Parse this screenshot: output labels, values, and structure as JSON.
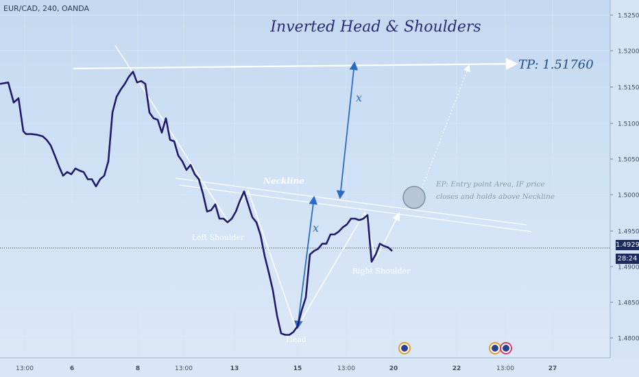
{
  "symbol_info": "EUR/CAD, 240, OANDA",
  "colors": {
    "price_line": "#1f1a6b",
    "annotation": "#ffffff",
    "accent_blue": "#2a6bc8",
    "title": "#2a2a7a",
    "tag_bg": "#1a2a5c"
  },
  "price_tag": {
    "price": "1.49290",
    "countdown": "28:24"
  },
  "chart_data": {
    "type": "line",
    "title": "Inverted Head & Shoulders",
    "x_ticks": [
      "13:00",
      "6",
      "8",
      "13:00",
      "13",
      "15",
      "13:00",
      "20",
      "22",
      "13:00",
      "27"
    ],
    "y_ticks": [
      "1.52500",
      "1.52000",
      "1.51500",
      "1.51000",
      "1.50500",
      "1.50000",
      "1.49500",
      "1.49000",
      "1.48500",
      "1.48000"
    ],
    "ylim": [
      1.4775,
      1.5275
    ],
    "grid": true,
    "series": [
      {
        "x": [
          0,
          12,
          20,
          27,
          34,
          38,
          46,
          54,
          62,
          68,
          74,
          80,
          86,
          92,
          98,
          104,
          110,
          116,
          122,
          128,
          134,
          140,
          146,
          152,
          158,
          164,
          170,
          176,
          182,
          188,
          194,
          200,
          206,
          212,
          218,
          224,
          230,
          236,
          242,
          248,
          254,
          260,
          266,
          272,
          278,
          284,
          290,
          296,
          302,
          308,
          314,
          320,
          326,
          332,
          338,
          344,
          350,
          356,
          362,
          368,
          374,
          380,
          386,
          392,
          398,
          404,
          410,
          416,
          422,
          428,
          434,
          440,
          446,
          452,
          458,
          464,
          470,
          476,
          482,
          488,
          494,
          500,
          506,
          512,
          518,
          524,
          530,
          536,
          542,
          548,
          554,
          560,
          566,
          572
        ],
        "y": [
          1.5158,
          1.516,
          1.5132,
          1.5138,
          1.5092,
          1.5088,
          1.5088,
          1.5087,
          1.5085,
          1.508,
          1.5072,
          1.5058,
          1.5043,
          1.503,
          1.5035,
          1.5032,
          1.504,
          1.5037,
          1.5035,
          1.5025,
          1.5025,
          1.5015,
          1.5025,
          1.503,
          1.505,
          1.5118,
          1.514,
          1.515,
          1.5158,
          1.5168,
          1.5175,
          1.516,
          1.5162,
          1.5158,
          1.5118,
          1.511,
          1.5108,
          1.509,
          1.511,
          1.508,
          1.5078,
          1.5058,
          1.505,
          1.5038,
          1.5045,
          1.5032,
          1.5025,
          1.5005,
          1.498,
          1.4982,
          1.499,
          1.497,
          1.497,
          1.4965,
          1.497,
          1.498,
          1.4995,
          1.5008,
          1.499,
          1.4972,
          1.4965,
          1.4947,
          1.4918,
          1.4895,
          1.487,
          1.4835,
          1.481,
          1.4808,
          1.4808,
          1.4812,
          1.482,
          1.4842,
          1.486,
          1.492,
          1.4925,
          1.4928,
          1.4935,
          1.4935,
          1.4948,
          1.4948,
          1.4952,
          1.4958,
          1.4962,
          1.497,
          1.497,
          1.4968,
          1.497,
          1.4975,
          1.491,
          1.492,
          1.4935,
          1.4932,
          1.493,
          1.4925
        ]
      }
    ],
    "annotations": {
      "tp_label": "TP: 1.51760",
      "neckline_label": "Neckline",
      "left_shoulder_label": "Left Shoulder",
      "head_label": "Head",
      "right_shoulder_label": "Right Shoulder",
      "x_label_upper": "x",
      "x_label_lower": "x",
      "ep_note_line1": "EP: Entry point Area, IF price",
      "ep_note_line2": "closes and holds above Neckline"
    }
  }
}
